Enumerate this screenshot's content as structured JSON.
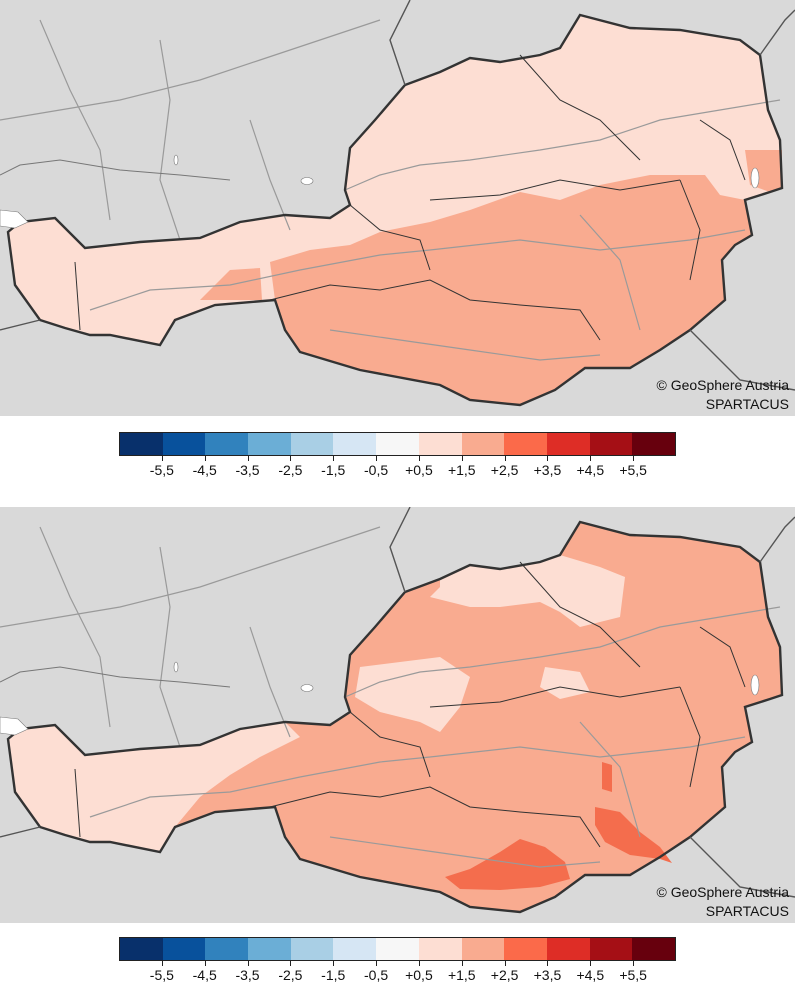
{
  "maps": [
    {
      "credit_line1": "© GeoSphere Austria",
      "credit_line2": "SPARTACUS"
    },
    {
      "credit_line1": "© GeoSphere Austria",
      "credit_line2": "SPARTACUS"
    }
  ],
  "legend": {
    "colors": [
      "#08306b",
      "#08519c",
      "#3182bd",
      "#6baed6",
      "#a9cfe5",
      "#d6e6f4",
      "#f7f7f7",
      "#fdded3",
      "#f9ab90",
      "#fb6a4a",
      "#de2d26",
      "#a50f15",
      "#67000d"
    ],
    "tick_labels": [
      "-5,5",
      "-4,5",
      "-3,5",
      "-2,5",
      "-1,5",
      "-0,5",
      "+0,5",
      "+1,5",
      "+2,5",
      "+3,5",
      "+4,5",
      "+5,5"
    ]
  },
  "colors": {
    "background": "#d9d9d9",
    "light_anomaly": "#fdded3",
    "medium_anomaly": "#f9ab90",
    "strong_anomaly": "#f46d4d",
    "rivers": "#9a9a9a",
    "borders": "#333333"
  }
}
